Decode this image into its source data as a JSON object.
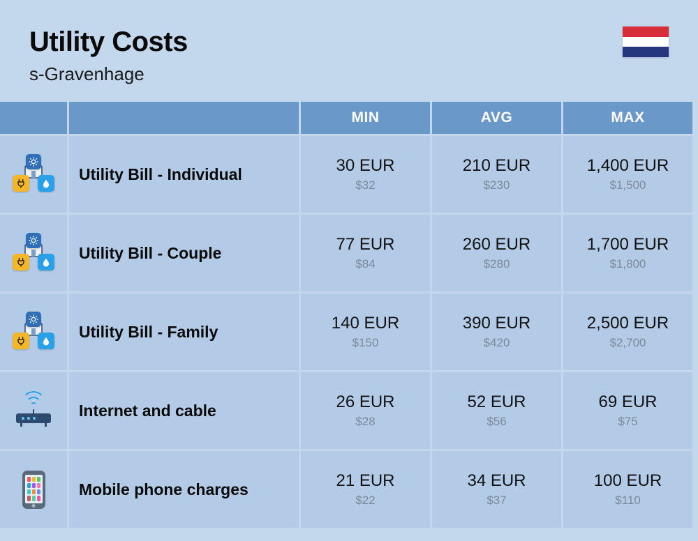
{
  "header": {
    "title": "Utility Costs",
    "subtitle": "s-Gravenhage",
    "flag_colors": [
      "#d82e3a",
      "#ffffff",
      "#26377f"
    ]
  },
  "colors": {
    "page_bg": "#c3d7ed",
    "header_bg": "#6a98c9",
    "header_text": "#ffffff",
    "cell_bg": "#b3cbe6",
    "primary_text": "#121212",
    "secondary_text": "#7a8a9a",
    "divider": "#c3d7ed"
  },
  "table": {
    "columns": [
      "MIN",
      "AVG",
      "MAX"
    ],
    "rows": [
      {
        "icon": "utility-cluster",
        "label": "Utility Bill - Individual",
        "min": {
          "eur": "30 EUR",
          "usd": "$32"
        },
        "avg": {
          "eur": "210 EUR",
          "usd": "$230"
        },
        "max": {
          "eur": "1,400 EUR",
          "usd": "$1,500"
        }
      },
      {
        "icon": "utility-cluster",
        "label": "Utility Bill - Couple",
        "min": {
          "eur": "77 EUR",
          "usd": "$84"
        },
        "avg": {
          "eur": "260 EUR",
          "usd": "$280"
        },
        "max": {
          "eur": "1,700 EUR",
          "usd": "$1,800"
        }
      },
      {
        "icon": "utility-cluster",
        "label": "Utility Bill - Family",
        "min": {
          "eur": "140 EUR",
          "usd": "$150"
        },
        "avg": {
          "eur": "390 EUR",
          "usd": "$420"
        },
        "max": {
          "eur": "2,500 EUR",
          "usd": "$2,700"
        }
      },
      {
        "icon": "router",
        "label": "Internet and cable",
        "min": {
          "eur": "26 EUR",
          "usd": "$28"
        },
        "avg": {
          "eur": "52 EUR",
          "usd": "$56"
        },
        "max": {
          "eur": "69 EUR",
          "usd": "$75"
        }
      },
      {
        "icon": "phone",
        "label": "Mobile phone charges",
        "min": {
          "eur": "21 EUR",
          "usd": "$22"
        },
        "avg": {
          "eur": "34 EUR",
          "usd": "$37"
        },
        "max": {
          "eur": "100 EUR",
          "usd": "$110"
        }
      }
    ]
  }
}
